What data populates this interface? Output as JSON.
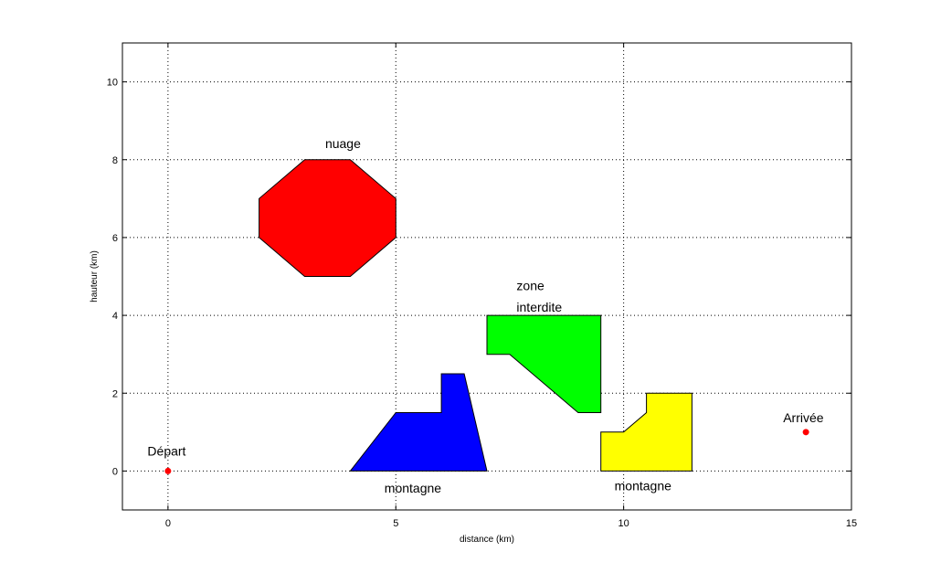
{
  "chart_data": {
    "type": "scatter",
    "title": "",
    "xlabel": "distance (km)",
    "ylabel": "hauteur (km)",
    "xlim": [
      -1,
      15
    ],
    "ylim": [
      -1,
      11
    ],
    "xticks": [
      0,
      5,
      10,
      15
    ],
    "yticks": [
      0,
      2,
      4,
      6,
      8,
      10
    ],
    "grid": true,
    "shapes": [
      {
        "name": "cloud",
        "color": "#ff0000",
        "points": [
          [
            3,
            8
          ],
          [
            4,
            8
          ],
          [
            5,
            7
          ],
          [
            5,
            6
          ],
          [
            4,
            5
          ],
          [
            3,
            5
          ],
          [
            2,
            6
          ],
          [
            2,
            7
          ]
        ]
      },
      {
        "name": "forbidden-zone",
        "color": "#00ff00",
        "points": [
          [
            7,
            4
          ],
          [
            9.5,
            4
          ],
          [
            9.5,
            1.5
          ],
          [
            9,
            1.5
          ],
          [
            7.5,
            3
          ],
          [
            7,
            3
          ]
        ]
      },
      {
        "name": "mountain-1",
        "color": "#0000ff",
        "points": [
          [
            4,
            0
          ],
          [
            7,
            0
          ],
          [
            6.5,
            2.5
          ],
          [
            6,
            2.5
          ],
          [
            6,
            1.5
          ],
          [
            5,
            1.5
          ]
        ]
      },
      {
        "name": "mountain-2",
        "color": "#ffff00",
        "points": [
          [
            9.5,
            0
          ],
          [
            11.5,
            0
          ],
          [
            11.5,
            2
          ],
          [
            10.5,
            2
          ],
          [
            10.5,
            1.5
          ],
          [
            10,
            1
          ],
          [
            9.5,
            1
          ]
        ]
      }
    ],
    "points": [
      {
        "name": "start",
        "x": 0,
        "y": 0,
        "color": "#ff0000"
      },
      {
        "name": "end",
        "x": 14,
        "y": 1,
        "color": "#ff0000"
      }
    ],
    "annotations": [
      {
        "text": "nuage",
        "x": 3.45,
        "y": 8.3
      },
      {
        "text": "zone",
        "x": 7.65,
        "y": 4.65
      },
      {
        "text": "interdite",
        "x": 7.65,
        "y": 4.1
      },
      {
        "text": "montagne",
        "x": 4.75,
        "y": -0.55
      },
      {
        "text": "montagne",
        "x": 9.8,
        "y": -0.5
      },
      {
        "text": "Départ",
        "x": -0.45,
        "y": 0.4
      },
      {
        "text": "Arrivée",
        "x": 13.5,
        "y": 1.25
      }
    ]
  }
}
